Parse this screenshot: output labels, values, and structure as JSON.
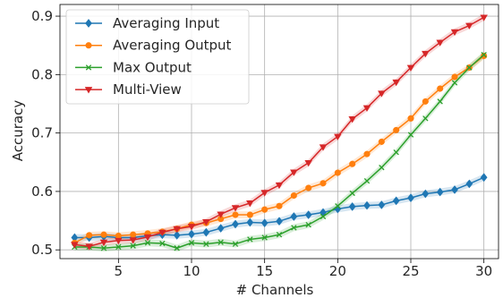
{
  "chart_data": {
    "type": "line",
    "xlabel": "# Channels",
    "ylabel": "Accuracy",
    "xlim": [
      1,
      31
    ],
    "ylim": [
      0.485,
      0.92
    ],
    "xticks": [
      5,
      10,
      15,
      20,
      25,
      30
    ],
    "yticks": [
      0.5,
      0.6,
      0.7,
      0.8,
      0.9
    ],
    "xtick_labels": [
      "5",
      "10",
      "15",
      "20",
      "25",
      "30"
    ],
    "ytick_labels": [
      "0.5",
      "0.6",
      "0.7",
      "0.8",
      "0.9"
    ],
    "grid": true,
    "legend_position": "top-left",
    "x": [
      2,
      3,
      4,
      5,
      6,
      7,
      8,
      9,
      10,
      11,
      12,
      13,
      14,
      15,
      16,
      17,
      18,
      19,
      20,
      21,
      22,
      23,
      24,
      25,
      26,
      27,
      28,
      29,
      30
    ],
    "series": [
      {
        "name": "Averaging Input",
        "color": "#1f77b4",
        "marker": "diamond",
        "values": [
          0.521,
          0.521,
          0.523,
          0.521,
          0.521,
          0.524,
          0.526,
          0.525,
          0.527,
          0.53,
          0.537,
          0.544,
          0.547,
          0.546,
          0.549,
          0.557,
          0.56,
          0.564,
          0.57,
          0.574,
          0.576,
          0.577,
          0.584,
          0.589,
          0.596,
          0.599,
          0.603,
          0.613,
          0.624
        ]
      },
      {
        "name": "Averaging Output",
        "color": "#ff7f0e",
        "marker": "circle",
        "values": [
          0.512,
          0.525,
          0.526,
          0.524,
          0.526,
          0.528,
          0.531,
          0.536,
          0.543,
          0.546,
          0.553,
          0.56,
          0.56,
          0.569,
          0.575,
          0.593,
          0.606,
          0.614,
          0.632,
          0.647,
          0.664,
          0.685,
          0.705,
          0.725,
          0.754,
          0.776,
          0.796,
          0.812,
          0.832
        ]
      },
      {
        "name": "Max Output",
        "color": "#2ca02c",
        "marker": "x",
        "values": [
          0.505,
          0.505,
          0.503,
          0.505,
          0.507,
          0.512,
          0.511,
          0.503,
          0.512,
          0.51,
          0.513,
          0.51,
          0.518,
          0.521,
          0.526,
          0.538,
          0.543,
          0.557,
          0.575,
          0.597,
          0.618,
          0.641,
          0.667,
          0.697,
          0.725,
          0.754,
          0.786,
          0.812,
          0.834
        ]
      },
      {
        "name": "Multi-View",
        "color": "#d62728",
        "marker": "triangle-down",
        "values": [
          0.509,
          0.506,
          0.513,
          0.516,
          0.517,
          0.522,
          0.53,
          0.536,
          0.54,
          0.548,
          0.561,
          0.572,
          0.58,
          0.598,
          0.611,
          0.633,
          0.649,
          0.676,
          0.694,
          0.724,
          0.743,
          0.768,
          0.787,
          0.812,
          0.836,
          0.855,
          0.873,
          0.884,
          0.898
        ]
      }
    ]
  }
}
